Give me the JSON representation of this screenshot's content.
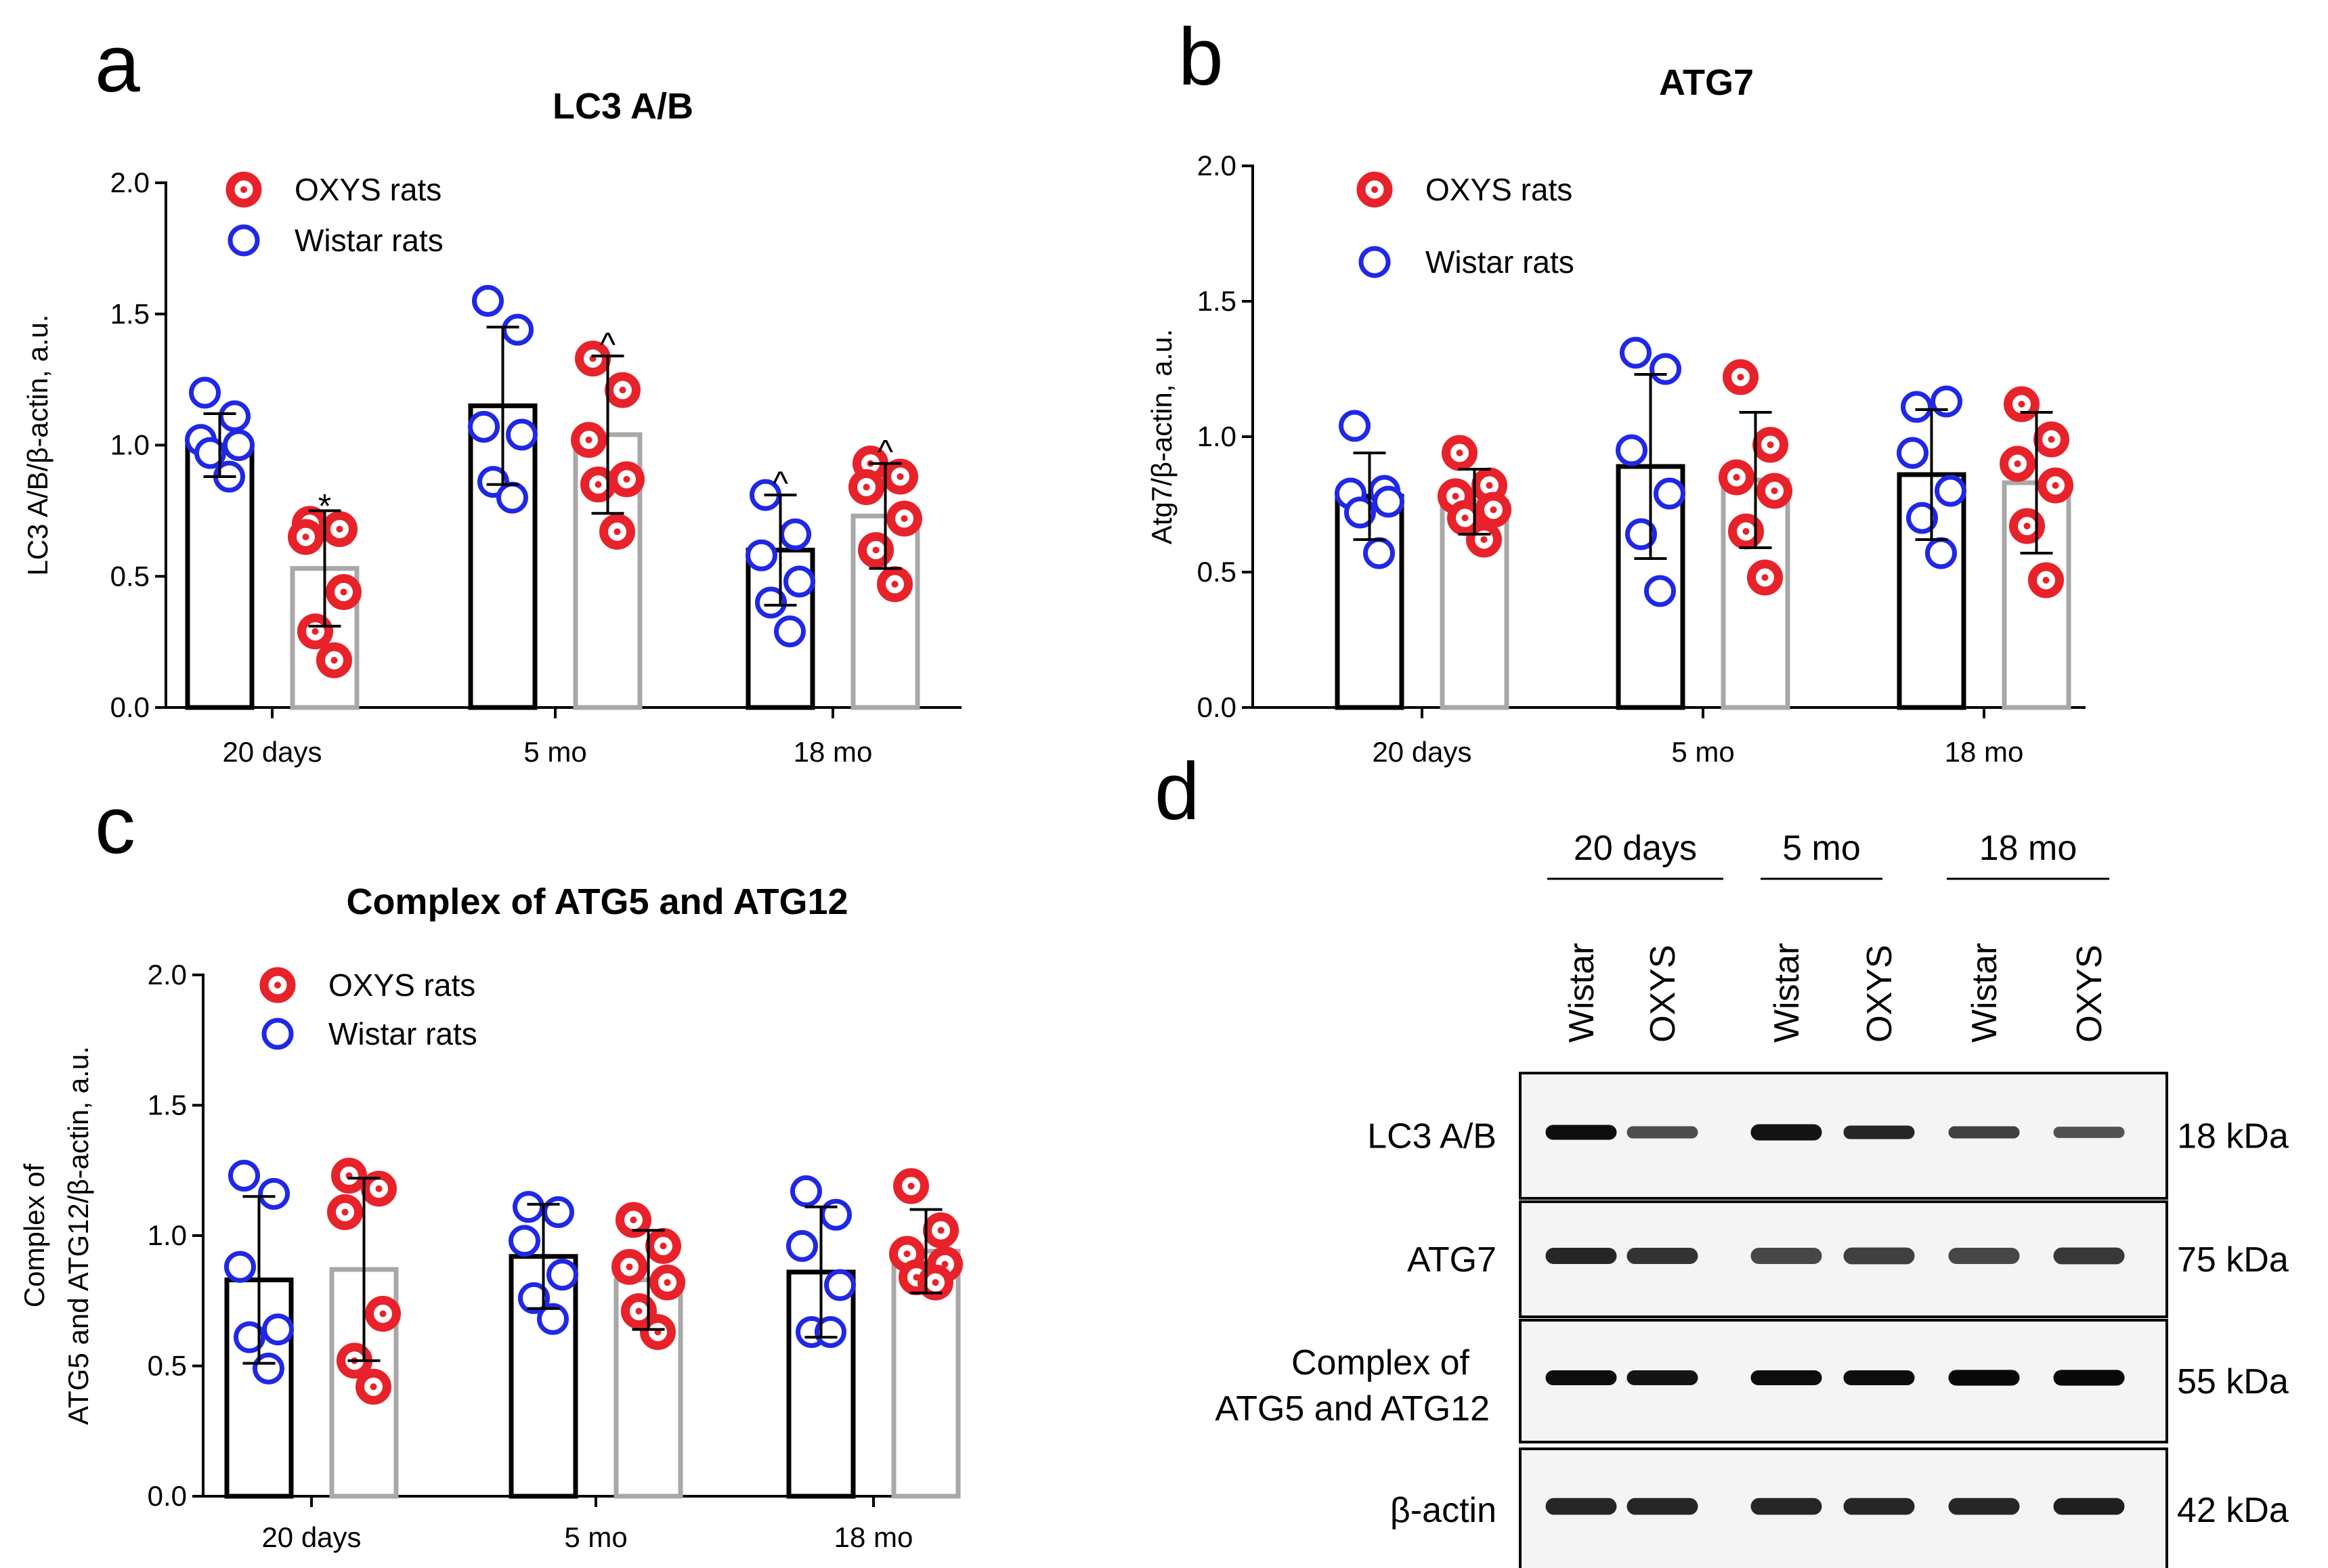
{
  "figure": {
    "panel_letters": [
      "a",
      "b",
      "c",
      "d"
    ],
    "colors": {
      "oxys": "#e8222a",
      "wistar": "#1f28e6",
      "wistar_bar": "#000000",
      "oxys_bar": "#a8a8a8"
    }
  },
  "chart_data": [
    {
      "type": "bar",
      "panel": "a",
      "title": "LC3 A/B",
      "xlabel": "",
      "ylabel": "LC3 A/B/β-actin, a.u.",
      "ylim": [
        0.0,
        2.0
      ],
      "yticks": [
        "0.0",
        "0.5",
        "1.0",
        "1.5",
        "2.0"
      ],
      "categories": [
        "20 days",
        "5 mo",
        "18 mo"
      ],
      "legend": [
        "OXYS rats",
        "Wistar rats"
      ],
      "legend_position": "top-left",
      "series": [
        {
          "name": "Wistar rats",
          "values": [
            1.0,
            1.15,
            0.6
          ],
          "sd": [
            0.12,
            0.3,
            0.21
          ],
          "points": [
            [
              1.2,
              1.11,
              1.02,
              1.0,
              0.97,
              0.88
            ],
            [
              1.55,
              1.44,
              1.07,
              1.04,
              0.86,
              0.8
            ],
            [
              0.81,
              0.66,
              0.58,
              0.48,
              0.4,
              0.29
            ]
          ],
          "annotations": [
            "",
            "",
            "^"
          ]
        },
        {
          "name": "OXYS rats",
          "values": [
            0.53,
            1.04,
            0.73
          ],
          "sd": [
            0.22,
            0.3,
            0.2
          ],
          "points": [
            [
              0.7,
              0.68,
              0.65,
              0.44,
              0.29,
              0.18
            ],
            [
              1.33,
              1.21,
              1.02,
              0.87,
              0.85,
              0.67
            ],
            [
              0.93,
              0.88,
              0.84,
              0.72,
              0.6,
              0.47
            ]
          ],
          "annotations": [
            "*",
            "^",
            "^"
          ]
        }
      ]
    },
    {
      "type": "bar",
      "panel": "b",
      "title": "ATG7",
      "xlabel": "",
      "ylabel": "Atg7/β-actin, a.u.",
      "ylim": [
        0.0,
        2.0
      ],
      "yticks": [
        "0.0",
        "0.5",
        "1.0",
        "1.5",
        "2.0"
      ],
      "categories": [
        "20 days",
        "5 mo",
        "18 mo"
      ],
      "legend": [
        "OXYS rats",
        "Wistar rats"
      ],
      "legend_position": "top-left",
      "series": [
        {
          "name": "Wistar rats",
          "values": [
            0.78,
            0.89,
            0.86
          ],
          "sd": [
            0.16,
            0.34,
            0.24
          ],
          "points": [
            [
              1.04,
              0.8,
              0.79,
              0.76,
              0.72,
              0.57
            ],
            [
              1.31,
              1.25,
              0.95,
              0.79,
              0.64,
              0.43
            ],
            [
              1.11,
              1.13,
              0.94,
              0.8,
              0.7,
              0.57
            ]
          ],
          "annotations": [
            "",
            "",
            ""
          ]
        },
        {
          "name": "OXYS rats",
          "values": [
            0.76,
            0.84,
            0.83
          ],
          "sd": [
            0.12,
            0.25,
            0.26
          ],
          "points": [
            [
              0.94,
              0.82,
              0.78,
              0.73,
              0.7,
              0.62
            ],
            [
              1.22,
              0.97,
              0.85,
              0.8,
              0.65,
              0.48
            ],
            [
              1.12,
              0.99,
              0.9,
              0.82,
              0.67,
              0.47
            ]
          ],
          "annotations": [
            "",
            "",
            ""
          ]
        }
      ]
    },
    {
      "type": "bar",
      "panel": "c",
      "title": "Complex of ATG5 and ATG12",
      "xlabel": "",
      "ylabel": "Complex of ATG5 and ATG12/β-actin, a.u.",
      "ylabel_lines": [
        "Complex of",
        "ATG5 and ATG12/β-actin, a.u."
      ],
      "ylim": [
        0.0,
        2.0
      ],
      "yticks": [
        "0.0",
        "0.5",
        "1.0",
        "1.5",
        "2.0"
      ],
      "categories": [
        "20 days",
        "5 mo",
        "18 mo"
      ],
      "legend": [
        "OXYS rats",
        "Wistar rats"
      ],
      "legend_position": "top-left",
      "series": [
        {
          "name": "Wistar rats",
          "values": [
            0.83,
            0.92,
            0.86
          ],
          "sd": [
            0.32,
            0.2,
            0.25
          ],
          "points": [
            [
              1.23,
              1.16,
              0.88,
              0.64,
              0.61,
              0.49
            ],
            [
              1.11,
              1.09,
              0.98,
              0.85,
              0.76,
              0.68
            ],
            [
              1.17,
              1.08,
              0.96,
              0.81,
              0.63,
              0.63
            ]
          ],
          "annotations": [
            "",
            "",
            ""
          ]
        },
        {
          "name": "OXYS rats",
          "values": [
            0.87,
            0.83,
            0.94
          ],
          "sd": [
            0.35,
            0.19,
            0.16
          ],
          "points": [
            [
              1.23,
              1.18,
              1.09,
              0.7,
              0.52,
              0.42
            ],
            [
              1.06,
              0.96,
              0.88,
              0.82,
              0.71,
              0.63
            ],
            [
              1.19,
              1.02,
              0.93,
              0.89,
              0.84,
              0.82
            ]
          ],
          "annotations": [
            "",
            "",
            ""
          ]
        }
      ]
    }
  ],
  "blot": {
    "panel": "d",
    "groups": [
      "20 days",
      "5 mo",
      "18 mo"
    ],
    "lanes": [
      "Wistar",
      "OXYS",
      "Wistar",
      "OXYS",
      "Wistar",
      "OXYS"
    ],
    "rows": [
      {
        "label_lines": [
          "LC3 A/B"
        ],
        "kda": "18 kDa",
        "intensity": [
          0.95,
          0.7,
          0.92,
          0.85,
          0.75,
          0.68
        ],
        "thickness": [
          0.55,
          0.45,
          0.6,
          0.5,
          0.45,
          0.42
        ]
      },
      {
        "label_lines": [
          "ATG7"
        ],
        "kda": "75 kDa",
        "intensity": [
          0.85,
          0.8,
          0.72,
          0.75,
          0.72,
          0.78
        ],
        "thickness": [
          0.6,
          0.6,
          0.6,
          0.62,
          0.6,
          0.62
        ]
      },
      {
        "label_lines": [
          "Complex of",
          "ATG5 and ATG12"
        ],
        "kda": "55 kDa",
        "intensity": [
          0.95,
          0.92,
          0.95,
          0.95,
          0.97,
          0.97
        ],
        "thickness": [
          0.55,
          0.55,
          0.55,
          0.55,
          0.58,
          0.58
        ]
      },
      {
        "label_lines": [
          "β-actin"
        ],
        "kda": "42 kDa",
        "intensity": [
          0.85,
          0.85,
          0.85,
          0.85,
          0.85,
          0.88
        ],
        "thickness": [
          0.62,
          0.62,
          0.62,
          0.62,
          0.62,
          0.62
        ]
      }
    ]
  }
}
